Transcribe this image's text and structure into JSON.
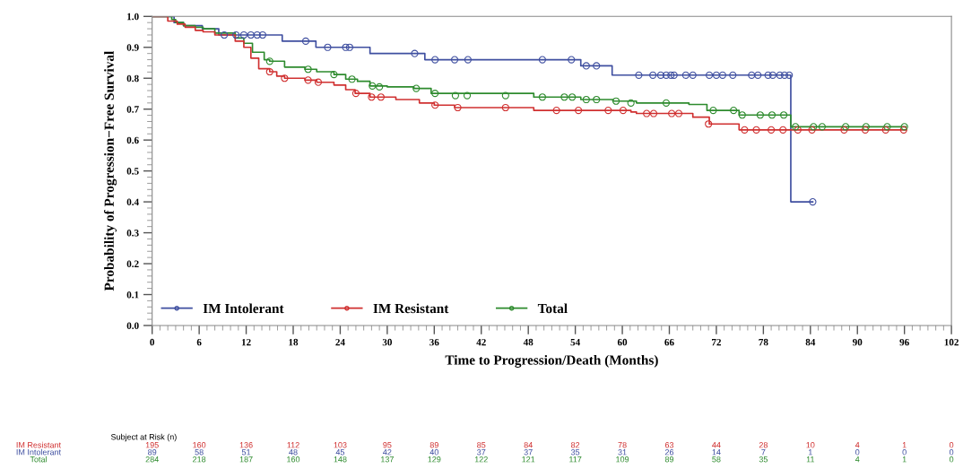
{
  "chart_data": {
    "type": "step",
    "xlabel": "Time to Progression/Death (Months)",
    "ylabel": "Probability of Progression−Free Survival",
    "xlim": [
      0,
      102
    ],
    "xticks": [
      0,
      6,
      12,
      18,
      24,
      30,
      36,
      42,
      48,
      54,
      60,
      66,
      72,
      78,
      84,
      90,
      96,
      102
    ],
    "ylim": [
      0,
      1
    ],
    "yticks": [
      {
        "value": 0,
        "label": "0.0"
      },
      {
        "value": 0.1,
        "label": "0.1"
      },
      {
        "value": 0.2,
        "label": "0.2"
      },
      {
        "value": 0.3,
        "label": "0.3"
      },
      {
        "value": 0.4,
        "label": "0.4"
      },
      {
        "value": 0.5,
        "label": "0.5"
      },
      {
        "value": 0.6,
        "label": "0.6"
      },
      {
        "value": 0.7,
        "label": "0.7"
      },
      {
        "value": 0.8,
        "label": "0.8"
      },
      {
        "value": 0.9,
        "label": "0.9"
      },
      {
        "value": 1,
        "label": "1.0"
      }
    ],
    "grid": false,
    "legend": "bottom left",
    "line_style": "solid",
    "series": [
      {
        "name": "IM Intolerant",
        "color": "#3f4fa0",
        "marker": "none",
        "x": [
          0,
          2.8,
          4,
          6.4,
          8.5,
          16.6,
          20.9,
          27.8,
          34.8,
          54.7,
          58.7,
          81.5,
          84.3
        ],
        "values": [
          1.0,
          0.98,
          0.97,
          0.96,
          0.94,
          0.92,
          0.9,
          0.88,
          0.86,
          0.84,
          0.81,
          0.4,
          0.4
        ]
      },
      {
        "name": "IM Resistant",
        "color": "#d03030",
        "marker": "none",
        "x": [
          0,
          2.0,
          3.2,
          4.2,
          5.5,
          6.5,
          8,
          10.6,
          11.7,
          12.6,
          13.6,
          15,
          15.9,
          16.9,
          19.5,
          21,
          23.2,
          24.7,
          25.9,
          27.8,
          31.1,
          34.1,
          36,
          38.6,
          48.7,
          61.1,
          61.8,
          69,
          71.1,
          74.9,
          96.2
        ],
        "values": [
          1.0,
          0.985,
          0.975,
          0.965,
          0.955,
          0.95,
          0.94,
          0.92,
          0.9,
          0.865,
          0.831,
          0.821,
          0.807,
          0.8,
          0.794,
          0.787,
          0.778,
          0.763,
          0.751,
          0.739,
          0.731,
          0.72,
          0.713,
          0.705,
          0.696,
          0.691,
          0.686,
          0.674,
          0.652,
          0.633,
          0.633
        ]
      },
      {
        "name": "Total",
        "color": "#2e8b2e",
        "marker": "none",
        "x": [
          0,
          2.5,
          3,
          4,
          5.5,
          6.5,
          8,
          10.6,
          11.7,
          12.8,
          14.3,
          15,
          16.9,
          19.5,
          21,
          23.2,
          24.7,
          26.2,
          27.8,
          30,
          33.4,
          35.6,
          48.7,
          54.7,
          58.8,
          61.8,
          68.5,
          70.8,
          74.9,
          81.5,
          96.2
        ],
        "values": [
          1.0,
          0.99,
          0.98,
          0.97,
          0.965,
          0.96,
          0.946,
          0.93,
          0.913,
          0.884,
          0.86,
          0.855,
          0.836,
          0.829,
          0.821,
          0.812,
          0.797,
          0.79,
          0.775,
          0.772,
          0.767,
          0.751,
          0.739,
          0.731,
          0.726,
          0.72,
          0.715,
          0.696,
          0.681,
          0.643,
          0.643
        ]
      },
      {
        "type": "scatter",
        "color": "#3f4fa0",
        "marker": "circle",
        "x": [
          9.2,
          10.7,
          11.7,
          12.6,
          13.4,
          14.1,
          19.6,
          22.4,
          24.7,
          25.2,
          33.5,
          36.1,
          38.6,
          40.3,
          49.8,
          53.5,
          55.4,
          56.7,
          62.1,
          63.9,
          64.9,
          65.6,
          66.2,
          66.6,
          68.1,
          69,
          71.1,
          72,
          72.8,
          74.1,
          76.5,
          77.3,
          78.6,
          79.2,
          80.1,
          80.7,
          81.3,
          84.3
        ],
        "values": [
          0.94,
          0.94,
          0.94,
          0.94,
          0.94,
          0.94,
          0.92,
          0.9,
          0.9,
          0.9,
          0.88,
          0.86,
          0.86,
          0.86,
          0.86,
          0.86,
          0.84,
          0.84,
          0.81,
          0.81,
          0.81,
          0.81,
          0.81,
          0.81,
          0.81,
          0.81,
          0.81,
          0.81,
          0.81,
          0.81,
          0.81,
          0.81,
          0.81,
          0.81,
          0.81,
          0.81,
          0.81,
          0.4
        ]
      },
      {
        "type": "scatter",
        "color": "#d03030",
        "marker": "circle",
        "x": [
          15,
          16.9,
          19.9,
          21.2,
          26,
          28,
          29.2,
          36.1,
          39,
          45.1,
          51.6,
          54.4,
          58.2,
          60.1,
          63.1,
          64,
          66.3,
          67.2,
          71,
          75.6,
          77.1,
          79,
          80.5,
          82.4,
          84.2,
          88.3,
          91,
          93.6,
          95.9
        ],
        "values": [
          0.821,
          0.8,
          0.794,
          0.787,
          0.751,
          0.739,
          0.739,
          0.713,
          0.705,
          0.705,
          0.696,
          0.696,
          0.696,
          0.696,
          0.686,
          0.686,
          0.686,
          0.686,
          0.652,
          0.633,
          0.633,
          0.633,
          0.633,
          0.633,
          0.633,
          0.633,
          0.633,
          0.633,
          0.633
        ]
      },
      {
        "type": "scatter",
        "color": "#2e8b2e",
        "marker": "circle",
        "x": [
          15,
          19.9,
          23.2,
          25.5,
          28.1,
          29,
          33.7,
          36.1,
          38.7,
          40.2,
          45.1,
          49.8,
          52.6,
          53.6,
          55.4,
          56.7,
          59.2,
          61.1,
          65.6,
          71.6,
          74.2,
          75.3,
          77.6,
          79.1,
          80.6,
          82.1,
          84.4,
          85.5,
          88.5,
          91.1,
          93.8,
          96
        ],
        "values": [
          0.855,
          0.829,
          0.812,
          0.797,
          0.775,
          0.772,
          0.767,
          0.751,
          0.744,
          0.744,
          0.744,
          0.739,
          0.739,
          0.739,
          0.731,
          0.731,
          0.726,
          0.72,
          0.72,
          0.696,
          0.696,
          0.681,
          0.681,
          0.681,
          0.681,
          0.643,
          0.643,
          0.643,
          0.643,
          0.643,
          0.643,
          0.643
        ]
      }
    ],
    "annotations": [
      "Subject at Risk (n)",
      "IM Resistant",
      "195",
      "160",
      "136",
      "112",
      "103",
      "95",
      "89",
      "85",
      "84",
      "82",
      "78",
      "63",
      "44",
      "28",
      "10",
      "4",
      "1",
      "0",
      "IM Intolerant",
      "89",
      "58",
      "51",
      "48",
      "45",
      "42",
      "40",
      "37",
      "37",
      "35",
      "31",
      "26",
      "14",
      "7",
      "1",
      "0",
      "0",
      "0",
      "Total",
      "284",
      "218",
      "187",
      "160",
      "148",
      "137",
      "129",
      "122",
      "121",
      "117",
      "109",
      "89",
      "58",
      "35",
      "11",
      "4",
      "1",
      "0"
    ]
  }
}
